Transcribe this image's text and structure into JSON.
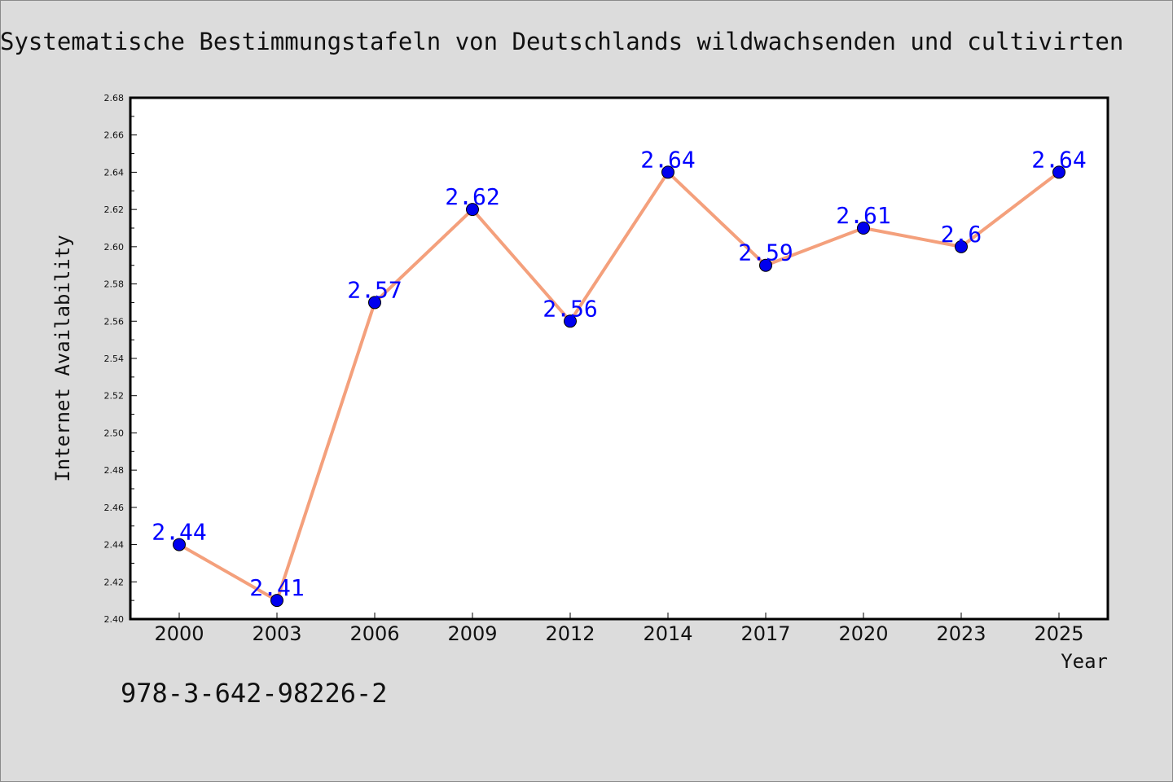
{
  "chart_data": {
    "type": "line",
    "title": "Systematische Bestimmungstafeln von Deutschlands wildwachsenden und cultivirten",
    "xlabel": "Year",
    "ylabel": "Internet Availability",
    "categories": [
      "2000",
      "2003",
      "2006",
      "2009",
      "2012",
      "2014",
      "2017",
      "2020",
      "2023",
      "2025"
    ],
    "values": [
      2.44,
      2.41,
      2.57,
      2.62,
      2.56,
      2.64,
      2.59,
      2.61,
      2.6,
      2.64
    ],
    "data_labels": [
      "2.44",
      "2.41",
      "2.57",
      "2.62",
      "2.56",
      "2.64",
      "2.59",
      "2.61",
      "2.6",
      "2.64"
    ],
    "ylim": [
      2.4,
      2.68
    ],
    "yticks": [
      "2.40",
      "2.42",
      "2.44",
      "2.46",
      "2.48",
      "2.50",
      "2.52",
      "2.54",
      "2.56",
      "2.58",
      "2.60",
      "2.62",
      "2.64",
      "2.66",
      "2.68"
    ],
    "grid": false,
    "line_color": "#f4a07c",
    "marker_color": "#0000ee",
    "label_color": "#0000ff"
  },
  "footer": {
    "code": "978-3-642-98226-2"
  }
}
